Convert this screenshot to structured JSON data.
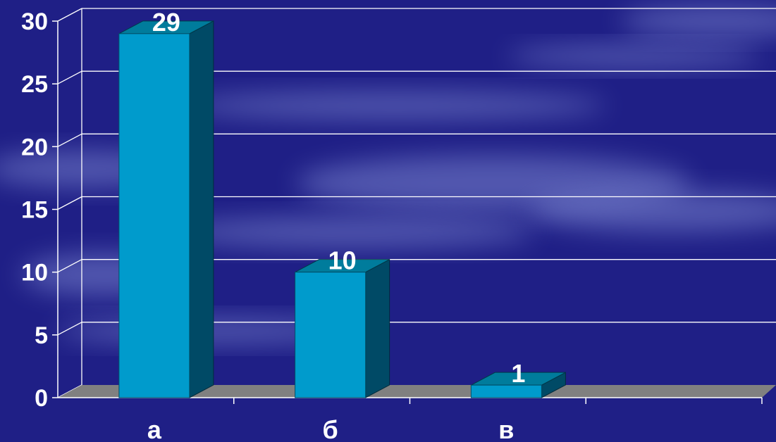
{
  "colors": {
    "background": "#1f1f86",
    "cloud": "#8f9be0",
    "bar_front": "#009bcc",
    "bar_side": "#004a66",
    "bar_top": "#007c9c",
    "floor": "#808080",
    "gridline": "#ffffff",
    "text": "#ffffff"
  },
  "chart_data": {
    "type": "bar",
    "style": "3d-column",
    "categories": [
      "а",
      "б",
      "в"
    ],
    "values": [
      29,
      10,
      1
    ],
    "data_labels": [
      "29",
      "10",
      "1"
    ],
    "title": "",
    "xlabel": "",
    "ylabel": "",
    "ylim": [
      0,
      30
    ],
    "yticks": [
      0,
      5,
      10,
      15,
      20,
      25,
      30
    ],
    "ytick_labels": [
      "0",
      "5",
      "10",
      "15",
      "20",
      "25",
      "30"
    ],
    "num_slots": 4,
    "grid": true,
    "legend": "none"
  }
}
